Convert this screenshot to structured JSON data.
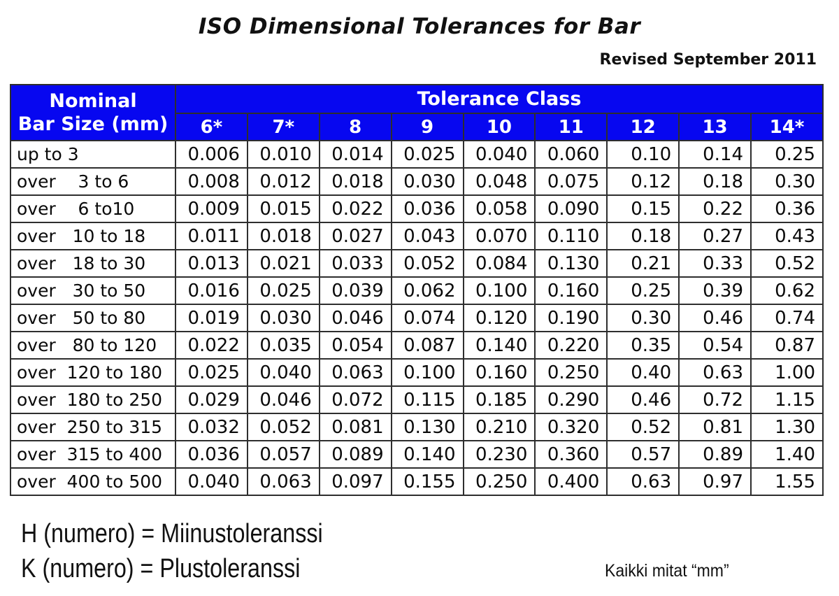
{
  "page": {
    "title": "ISO Dimensional Tolerances for Bar",
    "revision": "Revised September 2011"
  },
  "table": {
    "corner_header_line1": "Nominal",
    "corner_header_line2": "Bar Size (mm)",
    "group_header": "Tolerance Class",
    "class_headers": [
      "6*",
      "7*",
      "8",
      "9",
      "10",
      "11",
      "12",
      "13",
      "14*"
    ],
    "rows": [
      {
        "label": "up to 3",
        "values": [
          "0.006",
          "0.010",
          "0.014",
          "0.025",
          "0.040",
          "0.060",
          "0.10",
          "0.14",
          "0.25"
        ]
      },
      {
        "label": "over    3 to 6",
        "values": [
          "0.008",
          "0.012",
          "0.018",
          "0.030",
          "0.048",
          "0.075",
          "0.12",
          "0.18",
          "0.30"
        ]
      },
      {
        "label": "over    6 to10",
        "values": [
          "0.009",
          "0.015",
          "0.022",
          "0.036",
          "0.058",
          "0.090",
          "0.15",
          "0.22",
          "0.36"
        ]
      },
      {
        "label": "over   10 to 18",
        "values": [
          "0.011",
          "0.018",
          "0.027",
          "0.043",
          "0.070",
          "0.110",
          "0.18",
          "0.27",
          "0.43"
        ]
      },
      {
        "label": "over   18 to 30",
        "values": [
          "0.013",
          "0.021",
          "0.033",
          "0.052",
          "0.084",
          "0.130",
          "0.21",
          "0.33",
          "0.52"
        ]
      },
      {
        "label": "over   30 to 50",
        "values": [
          "0.016",
          "0.025",
          "0.039",
          "0.062",
          "0.100",
          "0.160",
          "0.25",
          "0.39",
          "0.62"
        ]
      },
      {
        "label": "over   50 to 80",
        "values": [
          "0.019",
          "0.030",
          "0.046",
          "0.074",
          "0.120",
          "0.190",
          "0.30",
          "0.46",
          "0.74"
        ]
      },
      {
        "label": "over   80 to 120",
        "values": [
          "0.022",
          "0.035",
          "0.054",
          "0.087",
          "0.140",
          "0.220",
          "0.35",
          "0.54",
          "0.87"
        ]
      },
      {
        "label": "over  120 to 180",
        "values": [
          "0.025",
          "0.040",
          "0.063",
          "0.100",
          "0.160",
          "0.250",
          "0.40",
          "0.63",
          "1.00"
        ]
      },
      {
        "label": "over  180 to 250",
        "values": [
          "0.029",
          "0.046",
          "0.072",
          "0.115",
          "0.185",
          "0.290",
          "0.46",
          "0.72",
          "1.15"
        ]
      },
      {
        "label": "over  250 to 315",
        "values": [
          "0.032",
          "0.052",
          "0.081",
          "0.130",
          "0.210",
          "0.320",
          "0.52",
          "0.81",
          "1.30"
        ]
      },
      {
        "label": "over  315 to 400",
        "values": [
          "0.036",
          "0.057",
          "0.089",
          "0.140",
          "0.230",
          "0.360",
          "0.57",
          "0.89",
          "1.40"
        ]
      },
      {
        "label": "over  400 to 500",
        "values": [
          "0.040",
          "0.063",
          "0.097",
          "0.155",
          "0.250",
          "0.400",
          "0.63",
          "0.97",
          "1.55"
        ]
      }
    ]
  },
  "footer": {
    "legend_line1": "H (numero) = Miinustoleranssi",
    "legend_line2": "K (numero) = Plustoleranssi",
    "units_note": "Kaikki mitat “mm”"
  },
  "colors": {
    "header_bg": "#0707f0",
    "header_text": "#ffffff",
    "border": "#2e2e2e",
    "body_text": "#0a0a0a"
  }
}
